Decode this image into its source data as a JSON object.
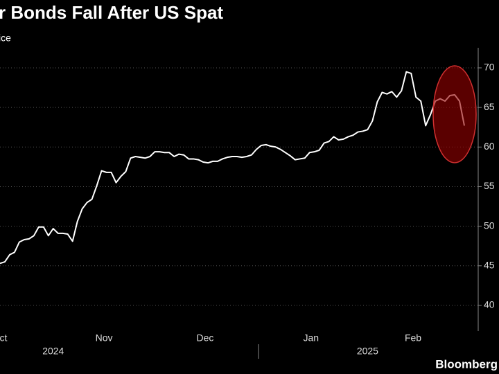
{
  "chart_data": {
    "type": "line",
    "title": "r Bonds Fall After US Spat",
    "subtitle": "ice",
    "source": "Bloomberg",
    "color": "#ffffff",
    "values": [
      45.3,
      45.5,
      46.4,
      46.7,
      48.0,
      48.3,
      48.4,
      48.8,
      49.9,
      49.9,
      48.8,
      49.7,
      49.1,
      49.1,
      49.0,
      48.1,
      50.6,
      52.2,
      53.0,
      53.4,
      55.1,
      57.0,
      56.8,
      56.8,
      55.5,
      56.3,
      56.9,
      58.6,
      58.8,
      58.7,
      58.6,
      58.8,
      59.4,
      59.4,
      59.3,
      59.3,
      58.8,
      59.1,
      59.0,
      58.5,
      58.5,
      58.4,
      58.1,
      58.0,
      58.2,
      58.2,
      58.5,
      58.7,
      58.8,
      58.8,
      58.7,
      58.8,
      59.0,
      59.7,
      60.2,
      60.3,
      60.1,
      60.0,
      59.7,
      59.3,
      58.9,
      58.4,
      58.5,
      58.6,
      59.3,
      59.4,
      59.6,
      60.5,
      60.7,
      61.3,
      60.9,
      61.0,
      61.3,
      61.5,
      61.9,
      62.0,
      62.2,
      63.3,
      65.7,
      66.9,
      66.7,
      67.0,
      66.3,
      67.1,
      69.5,
      69.3,
      66.3,
      65.8,
      62.7,
      64.1,
      65.8,
      66.1,
      65.8,
      66.5,
      66.6,
      65.8,
      62.7
    ],
    "xlim": [
      0,
      96
    ],
    "xticks": [
      {
        "value": 0.7,
        "label": "ct"
      },
      {
        "value": 21.5,
        "label": "Nov"
      },
      {
        "value": 42.4,
        "label": "Dec"
      },
      {
        "value": 64.3,
        "label": "Jan"
      },
      {
        "value": 85.4,
        "label": "Feb"
      }
    ],
    "years": [
      {
        "value": 11,
        "label": "2024"
      },
      {
        "value": 76,
        "label": "2025"
      }
    ],
    "ylim": [
      36.8,
      72.5
    ],
    "yticks": [
      40,
      45,
      50,
      55,
      60,
      65,
      70
    ],
    "grid": true
  }
}
